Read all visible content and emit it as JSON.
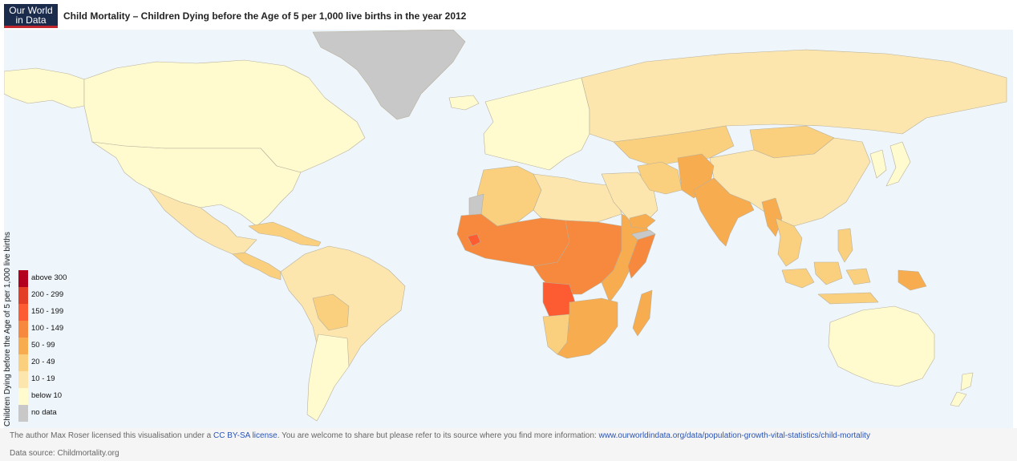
{
  "header": {
    "logo_line1": "Our World",
    "logo_line2": "in Data",
    "title": "Child Mortality – Children Dying before the Age of 5 per 1,000 live births in the year 2012"
  },
  "legend": {
    "axis_title": "Children Dying before the Age of 5 per 1,000 live births",
    "items": [
      {
        "label": "above 300",
        "color": "#b3001f"
      },
      {
        "label": "200 - 299",
        "color": "#e23f26"
      },
      {
        "label": "150 - 199",
        "color": "#fd5b32"
      },
      {
        "label": "100 - 149",
        "color": "#f6893e"
      },
      {
        "label": "50 - 99",
        "color": "#f8ac50"
      },
      {
        "label": "20 - 49",
        "color": "#fad07e"
      },
      {
        "label": "10 - 19",
        "color": "#fde6ad"
      },
      {
        "label": "below 10",
        "color": "#fffbcf"
      },
      {
        "label": "no data",
        "color": "#c8c8c8"
      }
    ]
  },
  "map": {
    "ocean_color": "#eef5fb",
    "border_color": "#b8b09a",
    "regions": [
      {
        "name": "greenland",
        "category": "no data"
      },
      {
        "name": "canada",
        "category": "below 10"
      },
      {
        "name": "usa",
        "category": "below 10"
      },
      {
        "name": "alaska",
        "category": "below 10"
      },
      {
        "name": "mexico",
        "category": "10 - 19"
      },
      {
        "name": "central-america",
        "category": "20 - 49"
      },
      {
        "name": "caribbean",
        "category": "20 - 49"
      },
      {
        "name": "south-america",
        "category": "10 - 19"
      },
      {
        "name": "bolivia",
        "category": "20 - 49"
      },
      {
        "name": "chile-argentina",
        "category": "below 10"
      },
      {
        "name": "europe",
        "category": "below 10"
      },
      {
        "name": "russia",
        "category": "10 - 19"
      },
      {
        "name": "kazakhstan-region",
        "category": "20 - 49"
      },
      {
        "name": "north-africa",
        "category": "20 - 49"
      },
      {
        "name": "libya",
        "category": "10 - 19"
      },
      {
        "name": "west-sahara",
        "category": "no data"
      },
      {
        "name": "west-africa",
        "category": "100 - 149"
      },
      {
        "name": "sierra-leone",
        "category": "150 - 199"
      },
      {
        "name": "central-africa",
        "category": "100 - 149"
      },
      {
        "name": "angola",
        "category": "150 - 199"
      },
      {
        "name": "east-africa",
        "category": "50 - 99"
      },
      {
        "name": "somalia",
        "category": "100 - 149"
      },
      {
        "name": "somaliland",
        "category": "no data"
      },
      {
        "name": "southern-africa",
        "category": "50 - 99"
      },
      {
        "name": "namibia",
        "category": "20 - 49"
      },
      {
        "name": "madagascar",
        "category": "50 - 99"
      },
      {
        "name": "arabia",
        "category": "10 - 19"
      },
      {
        "name": "yemen",
        "category": "50 - 99"
      },
      {
        "name": "iran",
        "category": "20 - 49"
      },
      {
        "name": "afghan-pakistan",
        "category": "50 - 99"
      },
      {
        "name": "india",
        "category": "50 - 99"
      },
      {
        "name": "china",
        "category": "10 - 19"
      },
      {
        "name": "mongolia",
        "category": "20 - 49"
      },
      {
        "name": "southeast-asia",
        "category": "20 - 49"
      },
      {
        "name": "myanmar",
        "category": "50 - 99"
      },
      {
        "name": "indonesia",
        "category": "20 - 49"
      },
      {
        "name": "papua-new-guinea",
        "category": "50 - 99"
      },
      {
        "name": "philippines",
        "category": "20 - 49"
      },
      {
        "name": "japan-korea",
        "category": "below 10"
      },
      {
        "name": "australia",
        "category": "below 10"
      },
      {
        "name": "new-zealand",
        "category": "below 10"
      },
      {
        "name": "iceland",
        "category": "below 10"
      }
    ]
  },
  "footer": {
    "credit_prefix": "The author Max Roser licensed this visualisation under a ",
    "license_link": "CC BY-SA license",
    "credit_middle": ". You are welcome to share but please refer to its source where you find more information: ",
    "source_link": "www.ourworldindata.org/data/population-growth-vital-statistics/child-mortality",
    "data_source": "Data source: Childmortality.org"
  }
}
